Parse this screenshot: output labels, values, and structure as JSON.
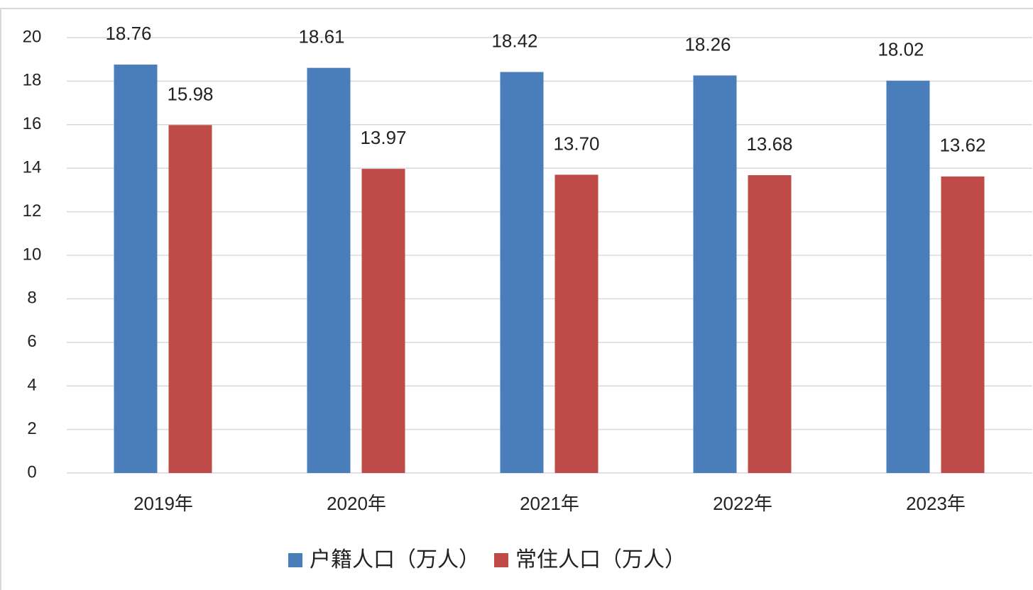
{
  "chart_data": {
    "type": "bar",
    "categories": [
      "2019年",
      "2020年",
      "2021年",
      "2022年",
      "2023年"
    ],
    "series": [
      {
        "name": "户籍人口（万人）",
        "color": "#4a7ebb",
        "values": [
          18.76,
          18.61,
          18.42,
          18.26,
          18.02
        ],
        "value_labels": [
          "18.76",
          "18.61",
          "18.42",
          "18.26",
          "18.02"
        ]
      },
      {
        "name": "常住人口（万人）",
        "color": "#be4b48",
        "values": [
          15.98,
          13.97,
          13.7,
          13.68,
          13.62
        ],
        "value_labels": [
          "15.98",
          "13.97",
          "13.70",
          "13.68",
          "13.62"
        ]
      }
    ],
    "ylim": [
      0,
      20
    ],
    "yticks": [
      0,
      2,
      4,
      6,
      8,
      10,
      12,
      14,
      16,
      18,
      20
    ],
    "grid": true,
    "legend": "bottom"
  }
}
